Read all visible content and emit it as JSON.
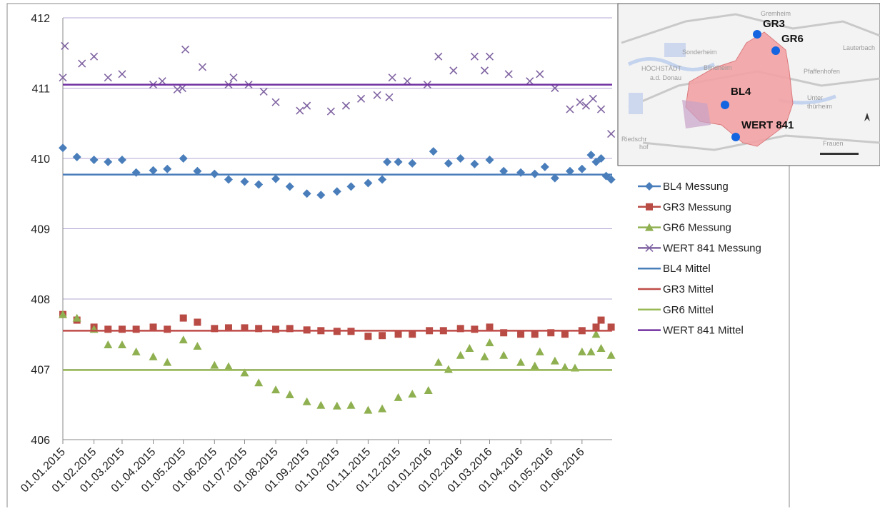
{
  "chart_data": {
    "type": "scatter",
    "xlim": [
      "01.01.2015",
      "01.07.2016"
    ],
    "xticks": [
      "01.01.2015",
      "01.02.2015",
      "01.03.2015",
      "01.04.2015",
      "01.05.2015",
      "01.06.2015",
      "01.07.2015",
      "01.08.2015",
      "01.09.2015",
      "01.10.2015",
      "01.11.2015",
      "01.12.2015",
      "01.01.2016",
      "01.02.2016",
      "01.03.2016",
      "01.04.2016",
      "01.05.2016",
      "01.06.2016"
    ],
    "ylim": [
      406,
      412
    ],
    "yticks": [
      406,
      407,
      408,
      409,
      410,
      411,
      412
    ],
    "grid": true,
    "series": [
      {
        "name": "BL4 Messung",
        "color": "#4a7ebb",
        "marker": "diamond",
        "line": false,
        "x": [
          "01.01.2015",
          "15.01.2015",
          "01.02.2015",
          "15.02.2015",
          "01.03.2015",
          "15.03.2015",
          "01.04.2015",
          "15.04.2015",
          "01.05.2015",
          "15.05.2015",
          "01.06.2015",
          "15.06.2015",
          "01.07.2015",
          "15.07.2015",
          "01.08.2015",
          "15.08.2015",
          "01.09.2015",
          "15.09.2015",
          "01.10.2015",
          "15.10.2015",
          "01.11.2015",
          "15.11.2015",
          "20.11.2015",
          "01.12.2015",
          "15.12.2015",
          "05.01.2016",
          "20.01.2016",
          "01.02.2016",
          "15.02.2016",
          "01.03.2016",
          "15.03.2016",
          "01.04.2016",
          "15.04.2016",
          "25.04.2016",
          "05.05.2016",
          "20.05.2016",
          "01.06.2016",
          "10.06.2016",
          "15.06.2016",
          "20.06.2016",
          "25.06.2016",
          "30.06.2016"
        ],
        "values": [
          410.15,
          410.02,
          409.98,
          409.95,
          409.98,
          409.8,
          409.83,
          409.85,
          410.0,
          409.82,
          409.78,
          409.7,
          409.67,
          409.63,
          409.71,
          409.6,
          409.5,
          409.48,
          409.53,
          409.6,
          409.65,
          409.7,
          409.95,
          409.95,
          409.93,
          410.1,
          409.93,
          410.0,
          409.92,
          409.98,
          409.82,
          409.8,
          409.78,
          409.88,
          409.72,
          409.82,
          409.85,
          410.05,
          409.95,
          410.0,
          409.75,
          409.7
        ]
      },
      {
        "name": "GR3 Messung",
        "color": "#b94b45",
        "marker": "square",
        "line": false,
        "x": [
          "01.01.2015",
          "15.01.2015",
          "01.02.2015",
          "15.02.2015",
          "01.03.2015",
          "15.03.2015",
          "01.04.2015",
          "15.04.2015",
          "01.05.2015",
          "15.05.2015",
          "01.06.2015",
          "15.06.2015",
          "01.07.2015",
          "15.07.2015",
          "01.08.2015",
          "15.08.2015",
          "01.09.2015",
          "15.09.2015",
          "01.10.2015",
          "15.10.2015",
          "01.11.2015",
          "15.11.2015",
          "01.12.2015",
          "15.12.2015",
          "01.01.2016",
          "15.01.2016",
          "01.02.2016",
          "15.02.2016",
          "01.03.2016",
          "15.03.2016",
          "01.04.2016",
          "15.04.2016",
          "01.05.2016",
          "15.05.2016",
          "01.06.2016",
          "15.06.2016",
          "20.06.2016",
          "30.06.2016"
        ],
        "values": [
          407.78,
          407.7,
          407.6,
          407.57,
          407.57,
          407.57,
          407.6,
          407.57,
          407.73,
          407.67,
          407.58,
          407.59,
          407.59,
          407.58,
          407.57,
          407.58,
          407.56,
          407.55,
          407.54,
          407.54,
          407.47,
          407.48,
          407.5,
          407.5,
          407.55,
          407.55,
          407.58,
          407.57,
          407.6,
          407.52,
          407.5,
          407.5,
          407.52,
          407.5,
          407.55,
          407.6,
          407.7,
          407.6
        ]
      },
      {
        "name": "GR6 Messung",
        "color": "#8fb050",
        "marker": "triangle",
        "line": false,
        "x": [
          "01.01.2015",
          "15.01.2015",
          "01.02.2015",
          "15.02.2015",
          "01.03.2015",
          "15.03.2015",
          "01.04.2015",
          "15.04.2015",
          "01.05.2015",
          "15.05.2015",
          "01.06.2015",
          "15.06.2015",
          "01.07.2015",
          "15.07.2015",
          "01.08.2015",
          "15.08.2015",
          "01.09.2015",
          "15.09.2015",
          "01.10.2015",
          "15.10.2015",
          "01.11.2015",
          "15.11.2015",
          "01.12.2015",
          "15.12.2015",
          "31.12.2015",
          "10.01.2016",
          "20.01.2016",
          "01.02.2016",
          "10.02.2016",
          "25.02.2016",
          "01.03.2016",
          "15.03.2016",
          "01.04.2016",
          "15.04.2016",
          "20.04.2016",
          "05.05.2016",
          "15.05.2016",
          "25.05.2016",
          "01.06.2016",
          "10.06.2016",
          "15.06.2016",
          "20.06.2016",
          "30.06.2016"
        ],
        "values": [
          407.78,
          407.73,
          407.57,
          407.35,
          407.35,
          407.25,
          407.18,
          407.1,
          407.42,
          407.33,
          407.06,
          407.04,
          406.95,
          406.81,
          406.71,
          406.64,
          406.54,
          406.49,
          406.48,
          406.49,
          406.42,
          406.44,
          406.6,
          406.65,
          406.7,
          407.1,
          407.0,
          407.2,
          407.3,
          407.18,
          407.38,
          407.2,
          407.1,
          407.05,
          407.25,
          407.12,
          407.03,
          407.02,
          407.25,
          407.25,
          407.5,
          407.3,
          407.2
        ]
      },
      {
        "name": "WERT 841 Messung",
        "color": "#8064a2",
        "marker": "x",
        "line": false,
        "x": [
          "01.01.2015",
          "03.01.2015",
          "20.01.2015",
          "01.02.2015",
          "15.02.2015",
          "01.03.2015",
          "01.04.2015",
          "10.04.2015",
          "25.04.2015",
          "30.04.2015",
          "03.05.2015",
          "20.05.2015",
          "15.06.2015",
          "20.06.2015",
          "05.07.2015",
          "20.07.2015",
          "01.08.2015",
          "25.08.2015",
          "01.09.2015",
          "25.09.2015",
          "10.10.2015",
          "25.10.2015",
          "10.11.2015",
          "22.11.2015",
          "25.11.2015",
          "10.12.2015",
          "30.12.2015",
          "10.01.2016",
          "25.01.2016",
          "15.02.2016",
          "25.02.2016",
          "01.03.2016",
          "20.03.2016",
          "10.04.2016",
          "20.04.2016",
          "05.05.2016",
          "20.05.2016",
          "30.05.2016",
          "05.06.2016",
          "12.06.2016",
          "20.06.2016",
          "30.06.2016"
        ],
        "values": [
          411.15,
          411.6,
          411.35,
          411.45,
          411.15,
          411.2,
          411.05,
          411.1,
          410.98,
          411.0,
          411.55,
          411.3,
          411.05,
          411.15,
          411.05,
          410.95,
          410.8,
          410.68,
          410.75,
          410.67,
          410.75,
          410.85,
          410.9,
          410.87,
          411.15,
          411.1,
          411.05,
          411.45,
          411.25,
          411.45,
          411.25,
          411.45,
          411.2,
          411.1,
          411.2,
          411.0,
          410.7,
          410.8,
          410.75,
          410.85,
          410.7,
          410.35
        ]
      },
      {
        "name": "BL4 Mittel",
        "color": "#4a7ebb",
        "marker": "none",
        "line": true,
        "x": [
          "01.01.2015",
          "01.07.2016"
        ],
        "values": [
          409.77,
          409.77
        ]
      },
      {
        "name": "GR3 Mittel",
        "color": "#be4b48",
        "marker": "none",
        "line": true,
        "x": [
          "01.01.2015",
          "01.07.2016"
        ],
        "values": [
          407.55,
          407.55
        ]
      },
      {
        "name": "GR6 Mittel",
        "color": "#98b954",
        "marker": "none",
        "line": true,
        "x": [
          "01.01.2015",
          "01.07.2016"
        ],
        "values": [
          406.99,
          406.99
        ]
      },
      {
        "name": "WERT 841 Mittel",
        "color": "#7030a0",
        "marker": "none",
        "line": true,
        "x": [
          "01.01.2015",
          "01.07.2016"
        ],
        "values": [
          411.05,
          411.05
        ]
      }
    ]
  },
  "map": {
    "points": [
      "GR3",
      "GR6",
      "BL4",
      "WERT 841"
    ],
    "labels": [
      "Blindheim",
      "Sonderheim",
      "HÖCHSTÄDT",
      "a.d. Donau",
      "Pfaffenhofen",
      "Lauterbach",
      "Unter",
      "thürheim",
      "Frauen",
      "Riedschr",
      "hof",
      "Gremheim"
    ]
  }
}
